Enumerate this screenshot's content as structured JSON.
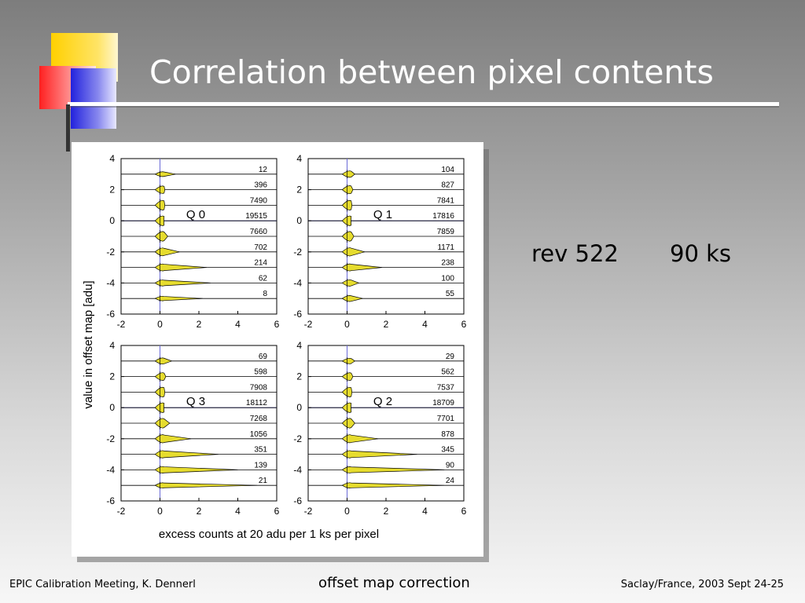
{
  "slide": {
    "title": "Correlation between pixel contents",
    "annotation_rev": "rev 522",
    "annotation_exposure": "90 ks",
    "footer_left": "EPIC Calibration Meeting, K. Dennerl",
    "footer_center": "offset map correction",
    "footer_right": "Saclay/France, 2003 Sept 24-25"
  },
  "colors": {
    "fill": "#e6dc2e",
    "axis_line": "#6a6ad8",
    "marker": "#ff2a2a"
  },
  "chart_data": {
    "type": "violin",
    "ylabel": "value in offset map [adu]",
    "xlabel": "excess counts at 20 adu per 1 ks per pixel",
    "xlim": [
      -2,
      6
    ],
    "ylim": [
      -6,
      4
    ],
    "xticks": [
      "-2",
      "0",
      "2",
      "4",
      "6"
    ],
    "yticks": [
      "4",
      "2",
      "0",
      "-2",
      "-4",
      "-6"
    ],
    "row_offsets": [
      3,
      2,
      1,
      0,
      -1,
      -2,
      -3,
      -4,
      -5
    ],
    "panels": [
      {
        "label": "Q 0",
        "position": "top-left",
        "counts": [
          "12",
          "396",
          "7490",
          "19515",
          "7660",
          "702",
          "214",
          "62",
          "8"
        ],
        "spread": [
          0.8,
          0.25,
          0.25,
          0.2,
          0.4,
          1.0,
          2.4,
          2.6,
          2.2
        ]
      },
      {
        "label": "Q 1",
        "position": "top-right",
        "counts": [
          "104",
          "827",
          "7841",
          "17816",
          "7859",
          "1171",
          "238",
          "100",
          "55"
        ],
        "spread": [
          0.4,
          0.3,
          0.25,
          0.2,
          0.35,
          0.9,
          1.8,
          0.6,
          0.8
        ]
      },
      {
        "label": "Q 3",
        "position": "bottom-left",
        "counts": [
          "69",
          "598",
          "7908",
          "18112",
          "7268",
          "1056",
          "351",
          "139",
          "21"
        ],
        "spread": [
          0.6,
          0.3,
          0.25,
          0.2,
          0.5,
          1.6,
          3.0,
          4.0,
          5.0
        ]
      },
      {
        "label": "Q 2",
        "position": "bottom-right",
        "counts": [
          "29",
          "562",
          "7537",
          "18709",
          "7701",
          "878",
          "345",
          "90",
          "24"
        ],
        "spread": [
          0.4,
          0.3,
          0.25,
          0.2,
          0.4,
          1.6,
          3.6,
          5.0,
          5.0
        ]
      }
    ]
  }
}
